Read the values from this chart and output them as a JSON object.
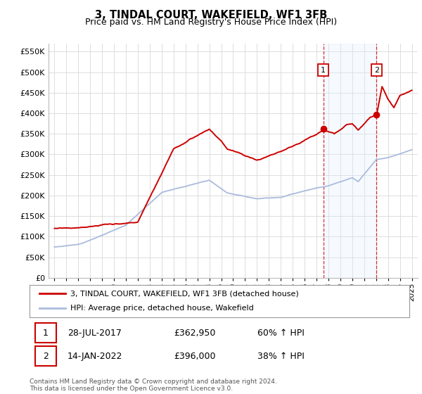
{
  "title": "3, TINDAL COURT, WAKEFIELD, WF1 3FB",
  "subtitle": "Price paid vs. HM Land Registry's House Price Index (HPI)",
  "title_fontsize": 10.5,
  "subtitle_fontsize": 9,
  "background_color": "#ffffff",
  "plot_bg_color": "#ffffff",
  "grid_color": "#dddddd",
  "legend_entry1": "3, TINDAL COURT, WAKEFIELD, WF1 3FB (detached house)",
  "legend_entry2": "HPI: Average price, detached house, Wakefield",
  "red_color": "#cc0000",
  "blue_color": "#aabbdd",
  "shade_color": "#ddeeff",
  "sale1_label": "1",
  "sale1_date": "28-JUL-2017",
  "sale1_price": "£362,950",
  "sale1_hpi": "60% ↑ HPI",
  "sale2_label": "2",
  "sale2_date": "14-JAN-2022",
  "sale2_price": "£396,000",
  "sale2_hpi": "38% ↑ HPI",
  "footnote": "Contains HM Land Registry data © Crown copyright and database right 2024.\nThis data is licensed under the Open Government Licence v3.0.",
  "ylim_min": 0,
  "ylim_max": 570000,
  "sale1_year": 2017.57,
  "sale1_value": 362950,
  "sale2_year": 2022.04,
  "sale2_value": 396000
}
